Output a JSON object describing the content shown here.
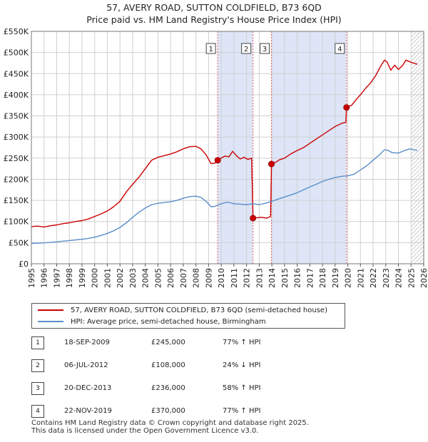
{
  "title_line1": "57, AVERY ROAD, SUTTON COLDFIELD, B73 6QD",
  "title_line2": "Price paid vs. HM Land Registry's House Price Index (HPI)",
  "legend": {
    "property": "57, AVERY ROAD, SUTTON COLDFIELD, B73 6QD (semi-detached house)",
    "hpi": "HPI: Average price, semi-detached house, Birmingham"
  },
  "colors": {
    "property_line": "#cc0000",
    "hpi_line": "#5b8ec9",
    "shade": "#dde5f7",
    "grid": "#d0d0d0",
    "marker_line": "#e06060"
  },
  "sales": [
    {
      "num": "1",
      "date": "18-SEP-2009",
      "price": "£245,000",
      "hpi": "77% ↑ HPI"
    },
    {
      "num": "2",
      "date": "06-JUL-2012",
      "price": "£108,000",
      "hpi": "24% ↓ HPI"
    },
    {
      "num": "3",
      "date": "20-DEC-2013",
      "price": "£236,000",
      "hpi": "58% ↑ HPI"
    },
    {
      "num": "4",
      "date": "22-NOV-2019",
      "price": "£370,000",
      "hpi": "77% ↑ HPI"
    }
  ],
  "footer_line1": "Contains HM Land Registry data © Crown copyright and database right 2025.",
  "footer_line2": "This data is licensed under the Open Government Licence v3.0.",
  "chart_data": {
    "type": "line",
    "title": "57, AVERY ROAD, SUTTON COLDFIELD, B73 6QD",
    "subtitle": "Price paid vs. HM Land Registry's House Price Index (HPI)",
    "xlim": [
      1995,
      2026
    ],
    "ylim": [
      0,
      550000
    ],
    "y_ticks": [
      {
        "value": 0,
        "label": "£0"
      },
      {
        "value": 50000,
        "label": "£50K"
      },
      {
        "value": 100000,
        "label": "£100K"
      },
      {
        "value": 150000,
        "label": "£150K"
      },
      {
        "value": 200000,
        "label": "£200K"
      },
      {
        "value": 250000,
        "label": "£250K"
      },
      {
        "value": 300000,
        "label": "£300K"
      },
      {
        "value": 350000,
        "label": "£350K"
      },
      {
        "value": 400000,
        "label": "£400K"
      },
      {
        "value": 450000,
        "label": "£450K"
      },
      {
        "value": 500000,
        "label": "£500K"
      },
      {
        "value": 550000,
        "label": "£550K"
      }
    ],
    "x_ticks": [
      1995,
      1996,
      1997,
      1998,
      1999,
      2000,
      2001,
      2002,
      2003,
      2004,
      2005,
      2006,
      2007,
      2008,
      2009,
      2010,
      2011,
      2012,
      2013,
      2014,
      2015,
      2016,
      2017,
      2018,
      2019,
      2020,
      2021,
      2022,
      2023,
      2024,
      2025,
      2026
    ],
    "shaded_periods": [
      [
        2009.72,
        2012.51
      ],
      [
        2013.97,
        2019.9
      ]
    ],
    "future_hatch_from": 2025.0,
    "sale_markers": [
      {
        "label": "1",
        "x": 2009.72,
        "y": 245000
      },
      {
        "label": "2",
        "x": 2012.51,
        "y": 108000
      },
      {
        "label": "3",
        "x": 2013.97,
        "y": 236000
      },
      {
        "label": "4",
        "x": 2019.9,
        "y": 370000
      }
    ],
    "series": [
      {
        "name": "57, AVERY ROAD, SUTTON COLDFIELD, B73 6QD (semi-detached house)",
        "color": "#cc0000",
        "points": [
          [
            1995.0,
            88000
          ],
          [
            1995.5,
            89000
          ],
          [
            1996.0,
            87000
          ],
          [
            1996.5,
            90000
          ],
          [
            1997.0,
            92000
          ],
          [
            1997.5,
            95000
          ],
          [
            1998.0,
            97000
          ],
          [
            1998.5,
            100000
          ],
          [
            1999.0,
            102000
          ],
          [
            1999.5,
            106000
          ],
          [
            2000.0,
            112000
          ],
          [
            2000.5,
            118000
          ],
          [
            2001.0,
            125000
          ],
          [
            2001.5,
            135000
          ],
          [
            2002.0,
            148000
          ],
          [
            2002.5,
            170000
          ],
          [
            2003.0,
            188000
          ],
          [
            2003.5,
            205000
          ],
          [
            2004.0,
            225000
          ],
          [
            2004.5,
            245000
          ],
          [
            2005.0,
            252000
          ],
          [
            2005.5,
            256000
          ],
          [
            2006.0,
            260000
          ],
          [
            2006.5,
            265000
          ],
          [
            2007.0,
            272000
          ],
          [
            2007.5,
            277000
          ],
          [
            2008.0,
            278000
          ],
          [
            2008.4,
            272000
          ],
          [
            2008.8,
            258000
          ],
          [
            2009.2,
            237000
          ],
          [
            2009.5,
            238000
          ],
          [
            2009.72,
            245000
          ],
          [
            2010.0,
            250000
          ],
          [
            2010.3,
            255000
          ],
          [
            2010.6,
            253000
          ],
          [
            2010.9,
            266000
          ],
          [
            2011.2,
            256000
          ],
          [
            2011.5,
            248000
          ],
          [
            2011.8,
            252000
          ],
          [
            2012.1,
            247000
          ],
          [
            2012.4,
            250000
          ],
          [
            2012.51,
            108000
          ],
          [
            2012.8,
            109000
          ],
          [
            2013.2,
            110000
          ],
          [
            2013.6,
            108000
          ],
          [
            2013.9,
            112000
          ],
          [
            2013.97,
            236000
          ],
          [
            2014.3,
            240000
          ],
          [
            2014.6,
            246000
          ],
          [
            2015.0,
            250000
          ],
          [
            2015.5,
            260000
          ],
          [
            2016.0,
            268000
          ],
          [
            2016.5,
            275000
          ],
          [
            2017.0,
            285000
          ],
          [
            2017.5,
            295000
          ],
          [
            2018.0,
            305000
          ],
          [
            2018.5,
            315000
          ],
          [
            2019.0,
            325000
          ],
          [
            2019.5,
            332000
          ],
          [
            2019.85,
            335000
          ],
          [
            2019.9,
            370000
          ],
          [
            2020.3,
            375000
          ],
          [
            2020.7,
            390000
          ],
          [
            2021.0,
            400000
          ],
          [
            2021.4,
            415000
          ],
          [
            2021.8,
            428000
          ],
          [
            2022.2,
            445000
          ],
          [
            2022.6,
            468000
          ],
          [
            2022.9,
            482000
          ],
          [
            2023.1,
            478000
          ],
          [
            2023.4,
            458000
          ],
          [
            2023.7,
            470000
          ],
          [
            2024.0,
            460000
          ],
          [
            2024.3,
            468000
          ],
          [
            2024.6,
            482000
          ],
          [
            2024.9,
            478000
          ],
          [
            2025.2,
            475000
          ],
          [
            2025.5,
            472000
          ]
        ]
      },
      {
        "name": "HPI: Average price, semi-detached house, Birmingham",
        "color": "#5b8ec9",
        "points": [
          [
            1995.0,
            48000
          ],
          [
            1995.5,
            49000
          ],
          [
            1996.0,
            49500
          ],
          [
            1996.5,
            50500
          ],
          [
            1997.0,
            52000
          ],
          [
            1997.5,
            53500
          ],
          [
            1998.0,
            55000
          ],
          [
            1998.5,
            56500
          ],
          [
            1999.0,
            58000
          ],
          [
            1999.5,
            60000
          ],
          [
            2000.0,
            63000
          ],
          [
            2000.5,
            67000
          ],
          [
            2001.0,
            72000
          ],
          [
            2001.5,
            78000
          ],
          [
            2002.0,
            86000
          ],
          [
            2002.5,
            97000
          ],
          [
            2003.0,
            110000
          ],
          [
            2003.5,
            122000
          ],
          [
            2004.0,
            132000
          ],
          [
            2004.5,
            140000
          ],
          [
            2005.0,
            143000
          ],
          [
            2005.5,
            145000
          ],
          [
            2006.0,
            147000
          ],
          [
            2006.5,
            150000
          ],
          [
            2007.0,
            155000
          ],
          [
            2007.5,
            159000
          ],
          [
            2008.0,
            160000
          ],
          [
            2008.4,
            157000
          ],
          [
            2008.8,
            148000
          ],
          [
            2009.2,
            135000
          ],
          [
            2009.5,
            136000
          ],
          [
            2010.0,
            142000
          ],
          [
            2010.5,
            146000
          ],
          [
            2011.0,
            142000
          ],
          [
            2011.5,
            141000
          ],
          [
            2012.0,
            140000
          ],
          [
            2012.5,
            142000
          ],
          [
            2013.0,
            140000
          ],
          [
            2013.5,
            143000
          ],
          [
            2014.0,
            148000
          ],
          [
            2014.5,
            153000
          ],
          [
            2015.0,
            158000
          ],
          [
            2015.5,
            163000
          ],
          [
            2016.0,
            168000
          ],
          [
            2016.5,
            175000
          ],
          [
            2017.0,
            182000
          ],
          [
            2017.5,
            188000
          ],
          [
            2018.0,
            195000
          ],
          [
            2018.5,
            200000
          ],
          [
            2019.0,
            204000
          ],
          [
            2019.5,
            207000
          ],
          [
            2020.0,
            208000
          ],
          [
            2020.5,
            212000
          ],
          [
            2021.0,
            222000
          ],
          [
            2021.5,
            232000
          ],
          [
            2022.0,
            245000
          ],
          [
            2022.5,
            258000
          ],
          [
            2022.9,
            270000
          ],
          [
            2023.2,
            268000
          ],
          [
            2023.5,
            263000
          ],
          [
            2024.0,
            262000
          ],
          [
            2024.5,
            268000
          ],
          [
            2024.9,
            272000
          ],
          [
            2025.2,
            270000
          ],
          [
            2025.5,
            268000
          ]
        ]
      }
    ]
  }
}
